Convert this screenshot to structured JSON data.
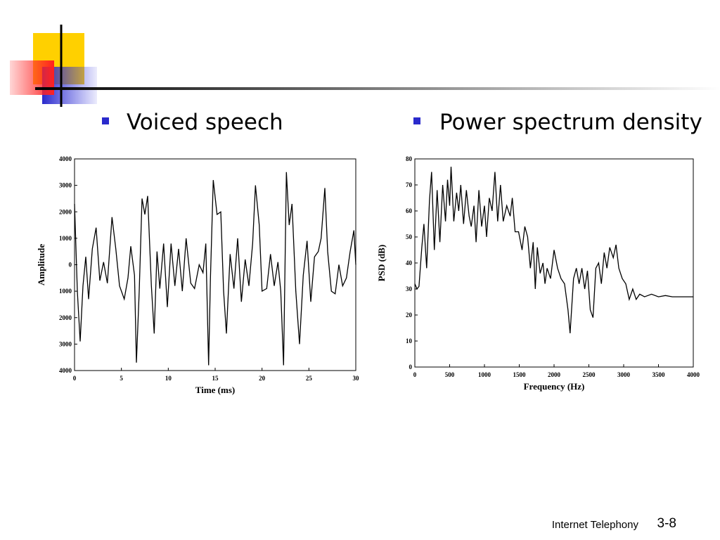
{
  "bullets": [
    "Voiced speech",
    "Power spectrum density"
  ],
  "footer": {
    "text": "Internet Telephony",
    "page": "3-8"
  },
  "chart_data": [
    {
      "type": "line",
      "xlabel": "Time (ms)",
      "ylabel": "Amplitude",
      "color": "#000000",
      "xlim": [
        0,
        30
      ],
      "xticks": [
        0,
        5,
        10,
        15,
        20,
        25,
        30
      ],
      "ylim": [
        -4000,
        4000
      ],
      "yticks": [
        {
          "value": -4000,
          "label": "4000"
        },
        {
          "value": -3000,
          "label": "3000"
        },
        {
          "value": -2000,
          "label": "2000"
        },
        {
          "value": -1000,
          "label": "1000"
        },
        0,
        1000,
        2000,
        3000,
        4000
      ],
      "x": [
        0,
        0.3,
        0.6,
        0.9,
        1.2,
        1.5,
        1.9,
        2.3,
        2.7,
        3.1,
        3.5,
        4.0,
        4.4,
        4.8,
        5.3,
        5.7,
        6.0,
        6.4,
        6.6,
        6.9,
        7.2,
        7.5,
        7.8,
        8.2,
        8.5,
        8.8,
        9.1,
        9.5,
        9.9,
        10.3,
        10.7,
        11.1,
        11.5,
        11.9,
        12.4,
        12.8,
        13.3,
        13.7,
        14.0,
        14.3,
        14.5,
        14.8,
        15.2,
        15.6,
        15.9,
        16.2,
        16.6,
        17.0,
        17.4,
        17.8,
        18.2,
        18.6,
        19.0,
        19.3,
        19.7,
        20.0,
        20.5,
        20.9,
        21.3,
        21.7,
        22.0,
        22.3,
        22.6,
        22.9,
        23.2,
        23.6,
        24.0,
        24.4,
        24.8,
        25.2,
        25.6,
        26.0,
        26.3,
        26.7,
        27.0,
        27.4,
        27.8,
        28.2,
        28.6,
        29.0,
        29.4,
        29.8,
        30
      ],
      "values": [
        2300,
        -1000,
        -2900,
        -800,
        300,
        -1300,
        600,
        1400,
        -600,
        100,
        -700,
        1800,
        600,
        -800,
        -1300,
        -500,
        700,
        -400,
        -3700,
        -1000,
        2500,
        1900,
        2600,
        -800,
        -2600,
        500,
        -900,
        800,
        -1600,
        800,
        -800,
        600,
        -1000,
        1000,
        -700,
        -900,
        0,
        -300,
        800,
        -3800,
        -500,
        3200,
        1900,
        2000,
        -1000,
        -2600,
        400,
        -900,
        1000,
        -1400,
        200,
        -800,
        800,
        3000,
        1500,
        -1000,
        -900,
        400,
        -800,
        100,
        -1000,
        -3800,
        3500,
        1500,
        2300,
        -1000,
        -3000,
        -400,
        900,
        -1400,
        300,
        500,
        1000,
        2900,
        500,
        -1000,
        -1100,
        0,
        -800,
        -500,
        500,
        1300,
        0
      ]
    },
    {
      "type": "line",
      "xlabel": "Frequency (Hz)",
      "ylabel": "PSD (dB)",
      "color": "#000000",
      "xlim": [
        0,
        4000
      ],
      "xticks": [
        0,
        500,
        1000,
        1500,
        2000,
        2500,
        3000,
        3500,
        4000
      ],
      "ylim": [
        0,
        80
      ],
      "yticks": [
        0,
        10,
        20,
        30,
        40,
        50,
        60,
        70,
        80
      ],
      "x": [
        0,
        30,
        60,
        100,
        130,
        170,
        210,
        240,
        280,
        320,
        360,
        400,
        440,
        470,
        500,
        520,
        560,
        600,
        630,
        660,
        700,
        740,
        780,
        810,
        850,
        880,
        920,
        960,
        1000,
        1030,
        1070,
        1110,
        1150,
        1190,
        1230,
        1270,
        1320,
        1370,
        1400,
        1440,
        1490,
        1540,
        1580,
        1620,
        1660,
        1700,
        1730,
        1760,
        1800,
        1840,
        1870,
        1900,
        1950,
        2000,
        2050,
        2100,
        2150,
        2200,
        2230,
        2280,
        2320,
        2360,
        2400,
        2440,
        2480,
        2520,
        2560,
        2600,
        2640,
        2680,
        2720,
        2760,
        2800,
        2850,
        2890,
        2930,
        2980,
        3030,
        3080,
        3130,
        3180,
        3230,
        3300,
        3400,
        3500,
        3600,
        3700,
        3800,
        3900,
        4000
      ],
      "values": [
        32,
        30,
        31,
        46,
        55,
        38,
        64,
        75,
        45,
        68,
        48,
        70,
        56,
        72,
        62,
        77,
        56,
        67,
        60,
        70,
        55,
        68,
        58,
        54,
        62,
        48,
        68,
        54,
        62,
        50,
        65,
        60,
        75,
        56,
        70,
        56,
        62,
        58,
        65,
        52,
        52,
        45,
        54,
        50,
        38,
        48,
        30,
        46,
        36,
        40,
        32,
        38,
        34,
        45,
        38,
        34,
        32,
        22,
        13,
        34,
        38,
        32,
        38,
        30,
        37,
        22,
        19,
        38,
        40,
        32,
        44,
        38,
        46,
        42,
        47,
        38,
        34,
        32,
        26,
        30,
        26,
        28,
        27,
        28,
        27,
        27.5,
        27,
        27,
        27,
        27
      ]
    }
  ]
}
